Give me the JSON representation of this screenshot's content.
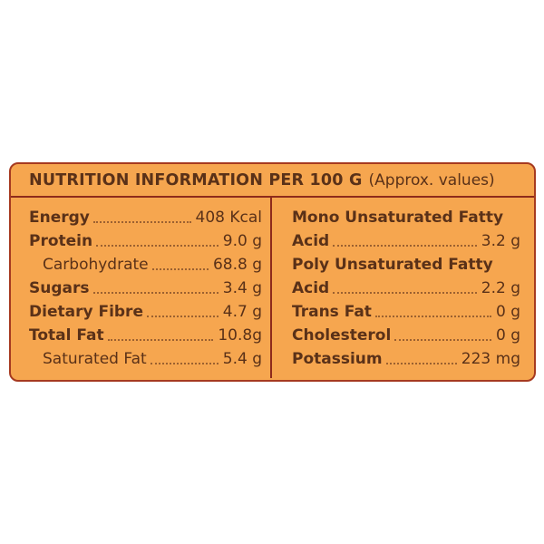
{
  "panel": {
    "title": "NUTRITION INFORMATION PER 100 G",
    "title_note": "(Approx. values)",
    "colors": {
      "panel_bg": "#F6A64F",
      "border": "#A63A20",
      "divider": "#8E2B1B",
      "text": "#5A3118",
      "dots": "#7E4A26"
    },
    "left_rows": [
      {
        "label": "Energy",
        "value": "408 Kcal",
        "bold": true,
        "indent": false
      },
      {
        "label": "Protein",
        "value": "9.0 g",
        "bold": true,
        "indent": false
      },
      {
        "label": "Carbohydrate",
        "value": "68.8 g",
        "bold": false,
        "indent": true
      },
      {
        "label": "Sugars",
        "value": "3.4 g",
        "bold": true,
        "indent": false
      },
      {
        "label": "Dietary Fibre",
        "value": "4.7 g",
        "bold": true,
        "indent": false
      },
      {
        "label": "Total Fat",
        "value": "10.8g",
        "bold": true,
        "indent": false
      },
      {
        "label": "Saturated Fat",
        "value": "5.4 g",
        "bold": false,
        "indent": true
      }
    ],
    "right_rows": [
      {
        "label": "Mono Unsaturated Fatty",
        "label2": "Acid",
        "value": "3.2 g",
        "bold": true,
        "indent": false
      },
      {
        "label": "Poly Unsaturated Fatty",
        "label2": "Acid",
        "value": "2.2 g",
        "bold": true,
        "indent": false
      },
      {
        "label": "Trans Fat",
        "value": "0 g",
        "bold": true,
        "indent": false
      },
      {
        "label": "Cholesterol",
        "value": "0 g",
        "bold": true,
        "indent": false
      },
      {
        "label": "Potassium",
        "value": "223 mg",
        "bold": true,
        "indent": false
      }
    ]
  }
}
